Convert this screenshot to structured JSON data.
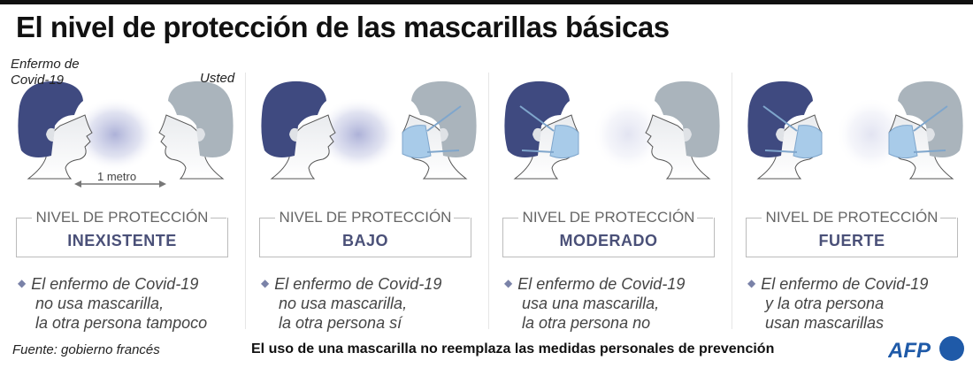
{
  "title": "El nivel de protección de las mascarillas básicas",
  "labels": {
    "sick": "Enfermo de\nCovid-19",
    "sick_line1": "Enfermo de",
    "sick_line2": "Covid-19",
    "you": "Usted",
    "distance": "1 metro"
  },
  "panels": [
    {
      "nivel": "NIVEL DE PROTECCIÓN",
      "level": "INEXISTENTE",
      "lines": [
        "El enfermo de Covid-19",
        "no usa mascarilla,",
        "la otra persona tampoco"
      ],
      "sick_mask": false,
      "you_mask": false
    },
    {
      "nivel": "NIVEL DE PROTECCIÓN",
      "level": "BAJO",
      "lines": [
        "El enfermo de Covid-19",
        "no usa mascarilla,",
        "la otra persona sí"
      ],
      "sick_mask": false,
      "you_mask": true
    },
    {
      "nivel": "NIVEL DE PROTECCIÓN",
      "level": "MODERADO",
      "lines": [
        "El enfermo de Covid-19",
        "usa una mascarilla,",
        "la otra persona no"
      ],
      "sick_mask": true,
      "you_mask": false
    },
    {
      "nivel": "NIVEL DE PROTECCIÓN",
      "level": "FUERTE",
      "lines": [
        "El enfermo de Covid-19",
        "y la otra persona",
        "usan mascarillas"
      ],
      "sick_mask": true,
      "you_mask": true
    }
  ],
  "footer": {
    "source": "Fuente: gobierno francés",
    "note": "El uso de una mascarilla no reemplaza las medidas personales de prevención",
    "logo": "AFP"
  },
  "colors": {
    "sick_hair": "#3f4a80",
    "you_hair": "#aab4bc",
    "mask": "#a8cbe9",
    "level_text": "#4a5078"
  }
}
